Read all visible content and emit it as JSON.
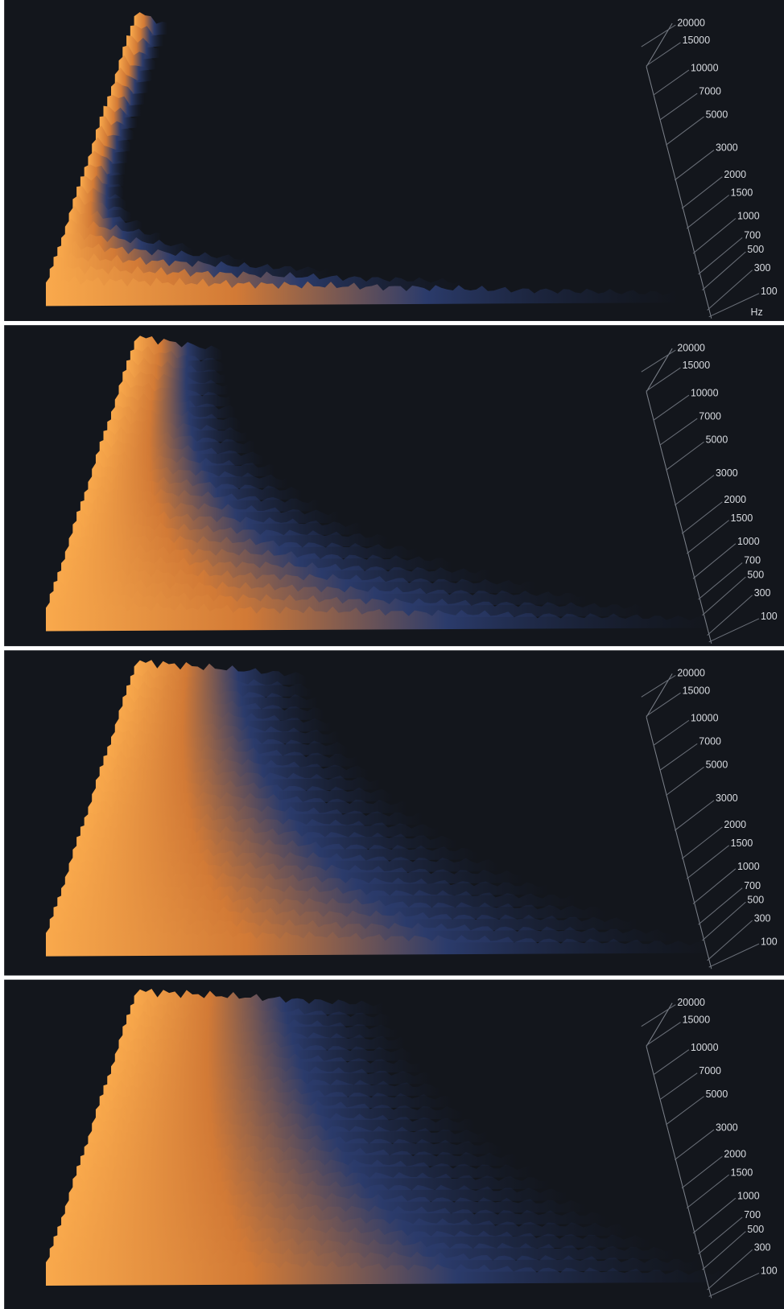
{
  "panels": [
    {
      "axis_labels": [
        20000,
        15000,
        10000,
        7000,
        5000,
        3000,
        2000,
        1500,
        1000,
        700,
        500,
        300,
        100
      ],
      "unit": "Hz"
    },
    {
      "axis_labels": [
        20000,
        15000,
        10000,
        7000,
        5000,
        3000,
        2000,
        1500,
        1000,
        700,
        500,
        300,
        100
      ]
    },
    {
      "axis_labels": [
        20000,
        15000,
        10000,
        7000,
        5000,
        3000,
        2000,
        1500,
        1000,
        700,
        500,
        300,
        100
      ]
    },
    {
      "axis_labels": [
        20000,
        15000,
        10000,
        7000,
        5000,
        3000,
        2000,
        1500,
        1000,
        700,
        500,
        300,
        100
      ]
    }
  ]
}
